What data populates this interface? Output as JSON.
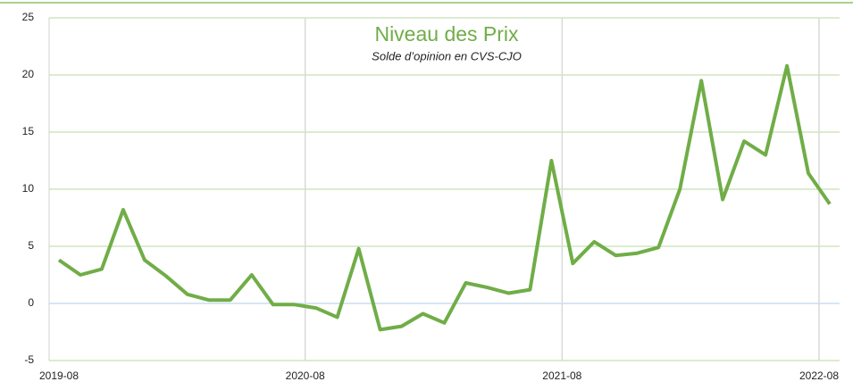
{
  "chart_data": {
    "type": "line",
    "title": "Niveau des Prix",
    "subtitle": "Solde d’opinion en CVS-CJO",
    "categories": [
      "2019-08",
      null,
      null,
      null,
      null,
      null,
      null,
      null,
      null,
      null,
      null,
      null,
      "2020-08",
      null,
      null,
      null,
      null,
      null,
      null,
      null,
      null,
      null,
      null,
      null,
      "2021-08",
      null,
      null,
      null,
      null,
      null,
      null,
      null,
      null,
      null,
      null,
      null,
      "2022-08"
    ],
    "series": [
      {
        "name": "Niveau des Prix",
        "color": "#70ad47",
        "values": [
          3.8,
          2.5,
          3.0,
          8.2,
          3.8,
          2.4,
          0.8,
          0.3,
          0.3,
          2.5,
          -0.1,
          -0.1,
          -0.4,
          -1.2,
          4.8,
          -2.3,
          -2.0,
          -0.9,
          -1.7,
          1.8,
          1.4,
          0.9,
          1.2,
          12.5,
          3.5,
          5.4,
          4.2,
          4.4,
          4.9,
          10.0,
          19.5,
          9.1,
          14.2,
          13.0,
          20.8,
          11.4,
          8.7
        ]
      }
    ],
    "ylim": [
      -5,
      25
    ],
    "yticks": [
      -5,
      0,
      5,
      10,
      15,
      20,
      25
    ],
    "grid": true
  }
}
